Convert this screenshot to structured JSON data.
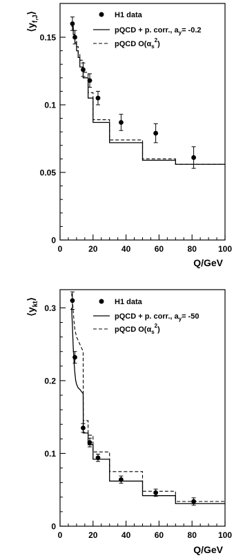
{
  "chart_data": [
    {
      "type": "line",
      "ylabel_main": "⟨y",
      "ylabel_sub": "f,J",
      "ylabel_close": "⟩",
      "xlabel": "Q/GeV",
      "xlim": [
        0,
        100
      ],
      "ylim": [
        0,
        0.175
      ],
      "xticks": [
        0,
        20,
        40,
        60,
        80,
        100
      ],
      "yticks": [
        0,
        0.05,
        0.1,
        0.15
      ],
      "ytick_labels": [
        "0",
        "0.05",
        "0.1",
        "0.15"
      ],
      "grid": false,
      "legend_placement": "top-right",
      "legend": {
        "data_label": "H1 data",
        "solid_main": "pQCD + p. corr., a",
        "solid_sub": "y",
        "solid_tail": "= -0.2",
        "dashed_main": "pQCD O(α",
        "dashed_sub": "s",
        "dashed_sup": "2",
        "dashed_tail": ")"
      },
      "bin_edges": [
        7,
        10,
        14,
        17,
        20,
        30,
        50,
        70,
        100
      ],
      "data": {
        "name": "H1 data",
        "x": [
          7.5,
          9,
          14,
          18,
          23,
          37,
          58,
          81
        ],
        "y": [
          0.16,
          0.15,
          0.126,
          0.118,
          0.105,
          0.087,
          0.079,
          0.061
        ],
        "err": [
          0.005,
          0.005,
          0.005,
          0.005,
          0.005,
          0.006,
          0.007,
          0.008
        ]
      },
      "series": [
        {
          "name": "pQCD + p. corr., ay= -0.2",
          "style": "solid",
          "step_x": [
            7,
            8,
            9,
            10,
            11,
            12,
            14,
            17,
            20,
            30,
            50,
            70,
            100
          ],
          "step_y": [
            0.158,
            0.152,
            0.146,
            0.14,
            0.135,
            0.128,
            0.12,
            0.105,
            0.087,
            0.072,
            0.059,
            0.056
          ]
        },
        {
          "name": "pQCD O(αs2)",
          "style": "dashed",
          "step_x": [
            7,
            8,
            9,
            10,
            11,
            12,
            14,
            17,
            20,
            30,
            50,
            70,
            100
          ],
          "step_y": [
            0.16,
            0.155,
            0.149,
            0.143,
            0.138,
            0.133,
            0.124,
            0.109,
            0.089,
            0.074,
            0.06,
            0.056
          ]
        }
      ]
    },
    {
      "type": "line",
      "ylabel_main": "⟨y",
      "ylabel_sub": "kt",
      "ylabel_close": "⟩",
      "xlabel": "Q/GeV",
      "xlim": [
        0,
        100
      ],
      "ylim": [
        0,
        0.325
      ],
      "xticks": [
        0,
        20,
        40,
        60,
        80,
        100
      ],
      "yticks": [
        0,
        0.1,
        0.2,
        0.3
      ],
      "ytick_labels": [
        "0",
        "0.1",
        "0.2",
        "0.3"
      ],
      "grid": false,
      "legend_placement": "top-right",
      "legend": {
        "data_label": "H1 data",
        "solid_main": "pQCD + p. corr., a",
        "solid_sub": "y",
        "solid_tail": "= -50",
        "dashed_main": "pQCD O(α",
        "dashed_sub": "s",
        "dashed_sup": "2",
        "dashed_tail": ")"
      },
      "bin_edges": [
        7,
        10,
        14,
        17,
        20,
        30,
        50,
        70,
        100
      ],
      "data": {
        "name": "H1 data",
        "x": [
          7.5,
          9,
          14,
          18,
          23,
          37,
          58,
          81
        ],
        "y": [
          0.31,
          0.232,
          0.135,
          0.115,
          0.094,
          0.064,
          0.046,
          0.034
        ],
        "err": [
          0.012,
          0.008,
          0.006,
          0.006,
          0.005,
          0.005,
          0.005,
          0.005
        ]
      },
      "series": [
        {
          "name": "pQCD + p. corr., ay= -50",
          "style": "solid",
          "curve_x": [
            7,
            7.5,
            8,
            8.5,
            9,
            9.5,
            10,
            11,
            12,
            13,
            14,
            14.1
          ],
          "curve_y": [
            0.3,
            0.275,
            0.245,
            0.225,
            0.21,
            0.2,
            0.195,
            0.19,
            0.188,
            0.185,
            0.182,
            0.13
          ],
          "step_x": [
            14,
            17,
            20,
            30,
            50,
            70,
            100
          ],
          "step_y": [
            0.128,
            0.112,
            0.092,
            0.062,
            0.042,
            0.031
          ]
        },
        {
          "name": "pQCD O(αs2)",
          "style": "dashed",
          "curve_x": [
            7,
            7.5,
            8,
            8.5,
            9,
            10,
            11,
            12,
            13,
            14,
            14.1
          ],
          "curve_y": [
            0.32,
            0.31,
            0.295,
            0.28,
            0.27,
            0.26,
            0.255,
            0.25,
            0.245,
            0.24,
            0.15
          ],
          "step_x": [
            14,
            17,
            20,
            30,
            50,
            70,
            100
          ],
          "step_y": [
            0.145,
            0.125,
            0.102,
            0.075,
            0.048,
            0.034
          ]
        }
      ]
    }
  ]
}
